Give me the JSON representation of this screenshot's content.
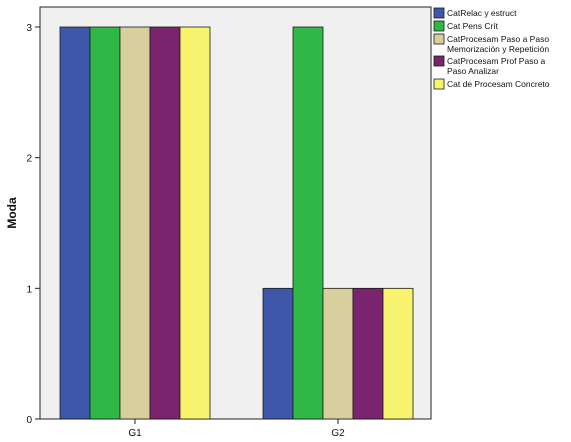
{
  "chart_data": {
    "type": "bar",
    "title": "",
    "xlabel": "",
    "ylabel": "Moda",
    "ylim": [
      0,
      3
    ],
    "yticks": [
      "0",
      "1",
      "2",
      "3"
    ],
    "categories": [
      "G1",
      "G2"
    ],
    "grid": false,
    "legend_position": "top-right",
    "plot_background": "#f0f0f0",
    "series": [
      {
        "name": "CatRelac y estruct",
        "color": "#3f57a8",
        "values": [
          3,
          1
        ]
      },
      {
        "name": "Cat Pens Crít",
        "color": "#2fb845",
        "values": [
          3,
          3
        ]
      },
      {
        "name": "CatProcesam Paso a Paso Memorización y Repetición",
        "color": "#d8d09c",
        "values": [
          3,
          1
        ]
      },
      {
        "name": "CatProcesam Prof Paso a Paso Analizar",
        "color": "#7a2470",
        "values": [
          3,
          1
        ]
      },
      {
        "name": "Cat de Procesam Concreto",
        "color": "#f7f36e",
        "values": [
          3,
          1
        ]
      }
    ]
  }
}
